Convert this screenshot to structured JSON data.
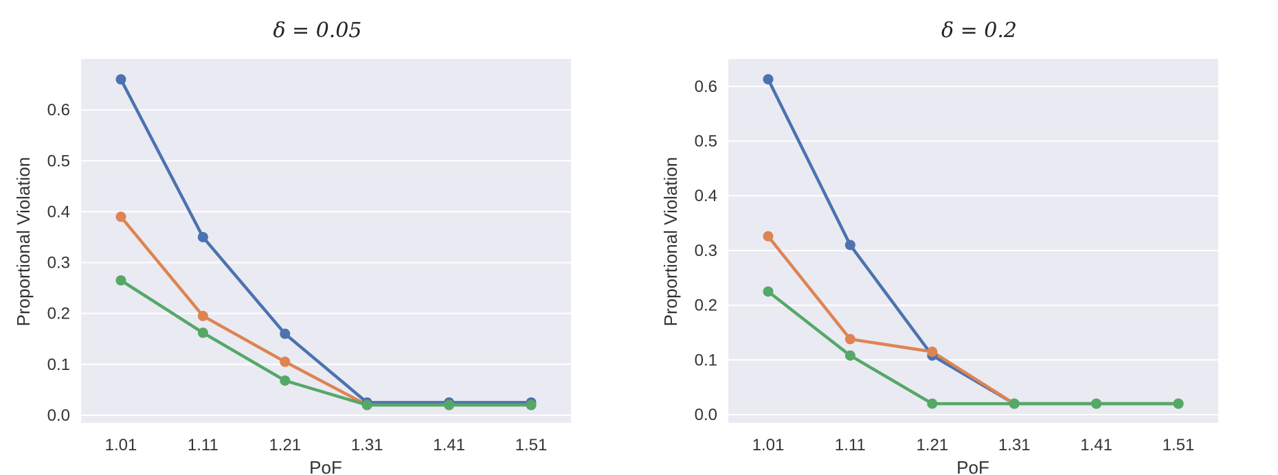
{
  "chart_data": [
    {
      "type": "line",
      "title": "δ = 0.05",
      "xlabel": "PoF",
      "ylabel": "Proportional Violation",
      "categories": [
        "1.01",
        "1.11",
        "1.21",
        "1.31",
        "1.41",
        "1.51"
      ],
      "yticks": [
        "0.0",
        "0.1",
        "0.2",
        "0.3",
        "0.4",
        "0.5",
        "0.6"
      ],
      "ylim": [
        -0.015,
        0.7
      ],
      "grid": true,
      "series": [
        {
          "color": "#4c72b0",
          "values": [
            0.66,
            0.35,
            0.16,
            0.025,
            0.025,
            0.025
          ]
        },
        {
          "color": "#dd8452",
          "values": [
            0.39,
            0.195,
            0.105,
            0.02,
            0.02,
            0.02
          ]
        },
        {
          "color": "#55a868",
          "values": [
            0.265,
            0.162,
            0.068,
            0.02,
            0.02,
            0.02
          ]
        }
      ]
    },
    {
      "type": "line",
      "title": "δ = 0.2",
      "xlabel": "PoF",
      "ylabel": "Proportional Violation",
      "categories": [
        "1.01",
        "1.11",
        "1.21",
        "1.31",
        "1.41",
        "1.51"
      ],
      "yticks": [
        "0.0",
        "0.1",
        "0.2",
        "0.3",
        "0.4",
        "0.5",
        "0.6"
      ],
      "ylim": [
        -0.015,
        0.65
      ],
      "grid": true,
      "series": [
        {
          "color": "#4c72b0",
          "values": [
            0.613,
            0.31,
            0.108,
            0.02,
            0.02,
            0.02
          ]
        },
        {
          "color": "#dd8452",
          "values": [
            0.326,
            0.138,
            0.115,
            0.02,
            0.02,
            0.02
          ]
        },
        {
          "color": "#55a868",
          "values": [
            0.225,
            0.108,
            0.02,
            0.02,
            0.02,
            0.02
          ]
        }
      ]
    }
  ]
}
